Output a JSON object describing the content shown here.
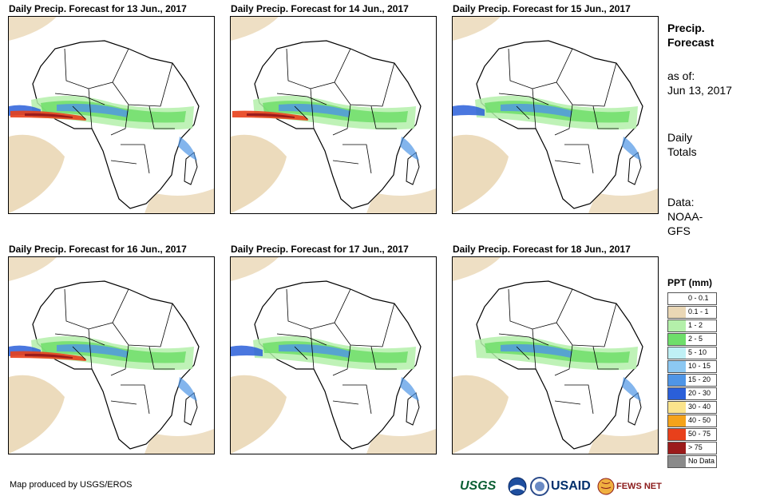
{
  "panels": [
    {
      "title": "Daily Precip. Forecast for 13 Jun., 2017"
    },
    {
      "title": "Daily Precip. Forecast for 14 Jun., 2017"
    },
    {
      "title": "Daily Precip. Forecast for 15 Jun., 2017"
    },
    {
      "title": "Daily Precip. Forecast for 16 Jun., 2017"
    },
    {
      "title": "Daily Precip. Forecast for 17 Jun., 2017"
    },
    {
      "title": "Daily Precip. Forecast for 18 Jun., 2017"
    }
  ],
  "sidebar": {
    "heading_line1": "Precip.",
    "heading_line2": "Forecast",
    "asof_label": "as of:",
    "asof_date": "Jun 13, 2017",
    "daily_line1": "Daily",
    "daily_line2": "Totals",
    "data_label": "Data:",
    "data_line1": "NOAA-",
    "data_line2": "GFS"
  },
  "legend": {
    "title": "PPT (mm)",
    "items": [
      {
        "label": "0 - 0.1",
        "color": "#ffffff"
      },
      {
        "label": "0.1 - 1",
        "color": "#ead7b5"
      },
      {
        "label": "1 - 2",
        "color": "#b4f0aa"
      },
      {
        "label": "2 - 5",
        "color": "#6ede6a"
      },
      {
        "label": "5 - 10",
        "color": "#bff0f5"
      },
      {
        "label": "10 - 15",
        "color": "#8cc8f2"
      },
      {
        "label": "15 - 20",
        "color": "#4f95e6"
      },
      {
        "label": "20 - 30",
        "color": "#2a5fd9"
      },
      {
        "label": "30 - 40",
        "color": "#fbe48c"
      },
      {
        "label": "40 - 50",
        "color": "#f5a31a"
      },
      {
        "label": "50 - 75",
        "color": "#e8401b"
      },
      {
        "label": "> 75",
        "color": "#9b1b1b"
      },
      {
        "label": "No Data",
        "color": "#8a8a8a"
      }
    ]
  },
  "footer": {
    "credit": "Map produced by USGS/EROS",
    "logo_usgs": "USGS",
    "logo_usaid": "USAID",
    "logo_fews": "FEWS NET"
  },
  "colors": {
    "land_outline": "#000000",
    "dry": "#ead7b5",
    "light_green": "#b4f0aa",
    "green": "#6ede6a",
    "blue": "#4f95e6",
    "dark_blue": "#2a5fd9",
    "red": "#e8401b",
    "dark_red": "#9b1b1b"
  }
}
